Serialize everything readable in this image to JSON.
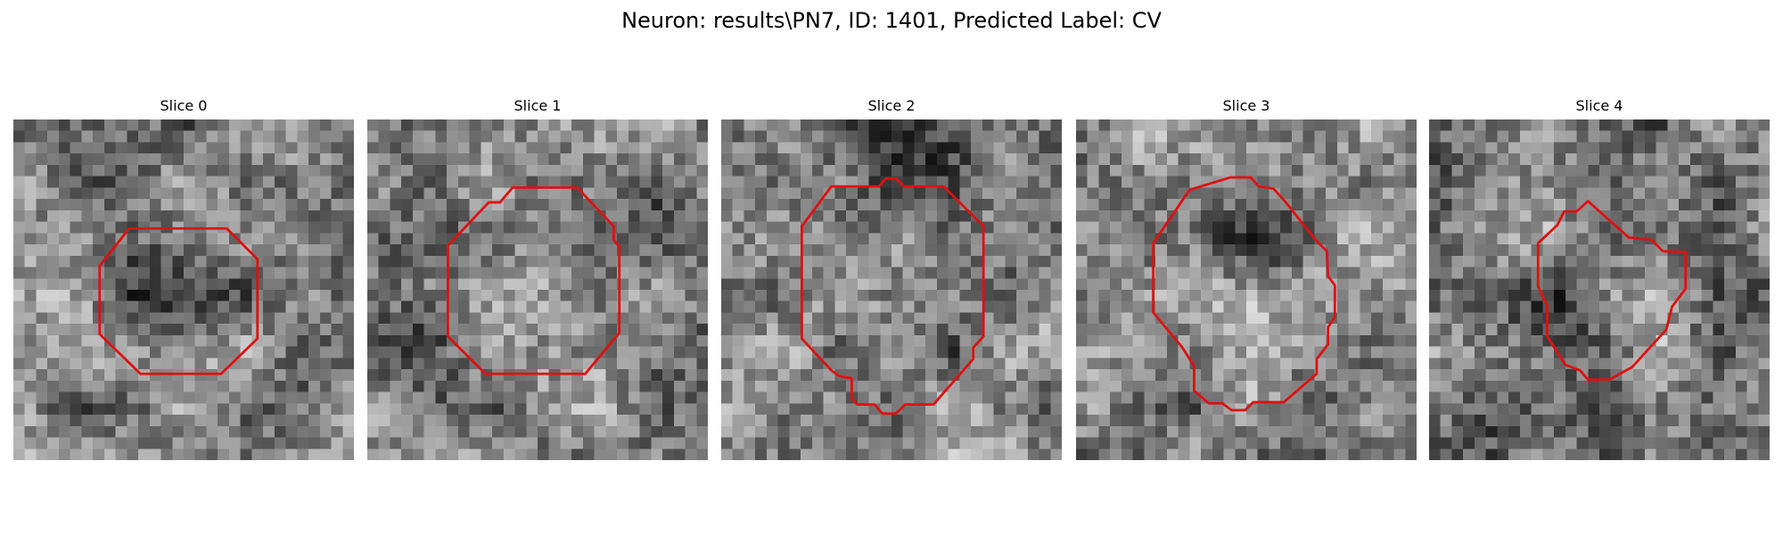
{
  "figure": {
    "title": "Neuron: results\\PN7, ID: 1401, Predicted Label: CV",
    "contour_color": "#e01010",
    "colormap": "grayscale"
  },
  "slices": [
    {
      "title": "Slice 0",
      "seed": 11,
      "dark_center": [
        0.48,
        0.54
      ],
      "dark_strength": 0.22,
      "contour": [
        [
          10.2,
          9.6
        ],
        [
          18.8,
          9.6
        ],
        [
          21.5,
          12.3
        ],
        [
          21.5,
          19.3
        ],
        [
          18.3,
          22.4
        ],
        [
          11.2,
          22.4
        ],
        [
          7.6,
          18.9
        ],
        [
          7.6,
          12.9
        ]
      ]
    },
    {
      "title": "Slice 1",
      "seed": 23,
      "dark_center": [
        0.18,
        0.6
      ],
      "dark_strength": 0.2,
      "contour": [
        [
          12.8,
          6.0
        ],
        [
          18.5,
          6.0
        ],
        [
          21.7,
          9.4
        ],
        [
          21.7,
          10.6
        ],
        [
          22.2,
          11.2
        ],
        [
          22.2,
          18.8
        ],
        [
          19.2,
          22.4
        ],
        [
          10.4,
          22.4
        ],
        [
          7.1,
          19.1
        ],
        [
          7.1,
          11.1
        ],
        [
          10.7,
          7.3
        ],
        [
          11.7,
          7.3
        ]
      ]
    },
    {
      "title": "Slice 2",
      "seed": 37,
      "dark_center": [
        0.5,
        0.2
      ],
      "dark_strength": 0.26,
      "contour": [
        [
          9.7,
          5.9
        ],
        [
          13.9,
          5.9
        ],
        [
          14.5,
          5.2
        ],
        [
          15.4,
          5.2
        ],
        [
          16.1,
          5.9
        ],
        [
          19.6,
          5.9
        ],
        [
          23.1,
          9.4
        ],
        [
          23.1,
          19.1
        ],
        [
          22.2,
          20.1
        ],
        [
          22.2,
          21.1
        ],
        [
          18.7,
          25.1
        ],
        [
          16.2,
          25.1
        ],
        [
          15.4,
          25.9
        ],
        [
          14.2,
          25.9
        ],
        [
          13.5,
          25.1
        ],
        [
          12.0,
          25.1
        ],
        [
          11.5,
          24.6
        ],
        [
          11.5,
          22.8
        ],
        [
          10.4,
          22.6
        ],
        [
          9.7,
          22.1
        ],
        [
          7.1,
          19.3
        ],
        [
          7.1,
          9.4
        ]
      ]
    },
    {
      "title": "Slice 3",
      "seed": 51,
      "dark_center": [
        0.55,
        0.32
      ],
      "dark_strength": 0.24,
      "contour": [
        [
          10.0,
          6.2
        ],
        [
          13.6,
          5.1
        ],
        [
          15.4,
          5.1
        ],
        [
          16.1,
          5.9
        ],
        [
          17.4,
          6.1
        ],
        [
          18.4,
          7.2
        ],
        [
          21.1,
          10.6
        ],
        [
          22.1,
          11.6
        ],
        [
          22.2,
          13.8
        ],
        [
          22.8,
          14.6
        ],
        [
          22.8,
          17.4
        ],
        [
          22.2,
          18.3
        ],
        [
          22.2,
          19.8
        ],
        [
          21.2,
          21.1
        ],
        [
          21.2,
          22.4
        ],
        [
          18.3,
          24.9
        ],
        [
          15.6,
          24.9
        ],
        [
          14.9,
          25.6
        ],
        [
          13.7,
          25.6
        ],
        [
          12.9,
          25.0
        ],
        [
          11.7,
          25.0
        ],
        [
          10.4,
          23.9
        ],
        [
          10.4,
          21.7
        ],
        [
          9.3,
          20.0
        ],
        [
          6.8,
          17.0
        ],
        [
          6.8,
          10.9
        ]
      ]
    },
    {
      "title": "Slice 4",
      "seed": 67,
      "dark_center": [
        0.42,
        0.58
      ],
      "dark_strength": 0.24,
      "contour": [
        [
          14.0,
          7.2
        ],
        [
          17.6,
          10.4
        ],
        [
          19.6,
          10.6
        ],
        [
          20.6,
          11.6
        ],
        [
          22.6,
          11.7
        ],
        [
          22.6,
          14.9
        ],
        [
          21.4,
          16.5
        ],
        [
          20.9,
          18.5
        ],
        [
          17.9,
          21.8
        ],
        [
          15.9,
          22.9
        ],
        [
          14.0,
          22.9
        ],
        [
          13.3,
          22.1
        ],
        [
          12.0,
          21.6
        ],
        [
          10.4,
          19.1
        ],
        [
          10.4,
          16.4
        ],
        [
          9.6,
          14.7
        ],
        [
          9.6,
          10.9
        ],
        [
          11.3,
          9.3
        ],
        [
          11.9,
          8.1
        ],
        [
          13.0,
          8.1
        ]
      ]
    }
  ]
}
